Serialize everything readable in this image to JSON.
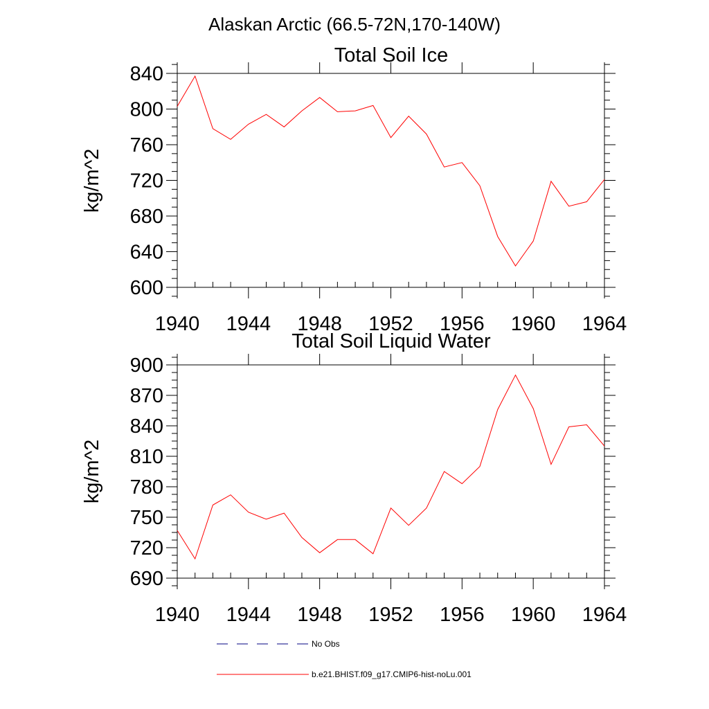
{
  "figure": {
    "title": "Alaskan Arctic (66.5-72N,170-140W)"
  },
  "colors": {
    "model": "#ff0000",
    "obs": "#000080",
    "axes": "#000000"
  },
  "legend": {
    "placement": "bottom",
    "obs_label": "No Obs",
    "model_label": "b.e21.BHIST.f09_g17.CMIP6-hist-noLu.001"
  },
  "chart_data": [
    {
      "type": "line",
      "title": "Total Soil Ice",
      "xlabel": "",
      "ylabel": "kg/m^2",
      "xlim": [
        1940,
        1964
      ],
      "ylim": [
        600,
        840
      ],
      "x_ticks": [
        1940,
        1944,
        1948,
        1952,
        1956,
        1960,
        1964
      ],
      "y_ticks": [
        600,
        640,
        680,
        720,
        760,
        800,
        840
      ],
      "series": [
        {
          "name": "b.e21.BHIST.f09_g17.CMIP6-hist-noLu.001",
          "x": [
            1940,
            1941,
            1942,
            1943,
            1944,
            1945,
            1946,
            1947,
            1948,
            1949,
            1950,
            1951,
            1952,
            1953,
            1954,
            1955,
            1956,
            1957,
            1958,
            1959,
            1960,
            1961,
            1962,
            1963,
            1964
          ],
          "y": [
            803,
            837,
            778,
            766,
            783,
            794,
            780,
            798,
            813,
            797,
            798,
            804,
            768,
            792,
            772,
            735,
            740,
            714,
            657,
            624,
            652,
            719,
            691,
            696,
            721
          ]
        }
      ]
    },
    {
      "type": "line",
      "title": "Total Soil Liquid Water",
      "xlabel": "",
      "ylabel": "kg/m^2",
      "xlim": [
        1940,
        1964
      ],
      "ylim": [
        690,
        900
      ],
      "x_ticks": [
        1940,
        1944,
        1948,
        1952,
        1956,
        1960,
        1964
      ],
      "y_ticks": [
        690,
        720,
        750,
        780,
        810,
        840,
        870,
        900
      ],
      "series": [
        {
          "name": "b.e21.BHIST.f09_g17.CMIP6-hist-noLu.001",
          "x": [
            1940,
            1941,
            1942,
            1943,
            1944,
            1945,
            1946,
            1947,
            1948,
            1949,
            1950,
            1951,
            1952,
            1953,
            1954,
            1955,
            1956,
            1957,
            1958,
            1959,
            1960,
            1961,
            1962,
            1963,
            1964
          ],
          "y": [
            737,
            709,
            762,
            772,
            755,
            748,
            754,
            730,
            715,
            728,
            728,
            714,
            759,
            742,
            759,
            795,
            783,
            800,
            856,
            890,
            857,
            802,
            839,
            841,
            820
          ]
        }
      ]
    }
  ]
}
